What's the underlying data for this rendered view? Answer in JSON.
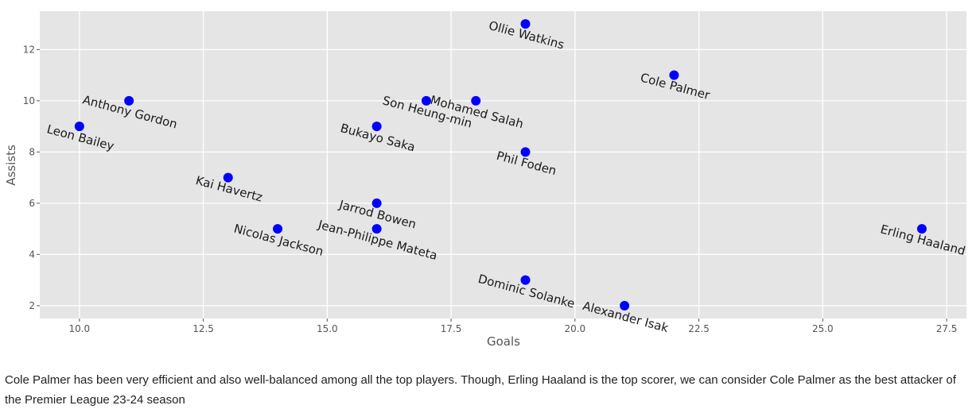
{
  "chart_data": {
    "type": "scatter",
    "xlabel": "Goals",
    "ylabel": "Assists",
    "xlim": [
      9.2,
      27.9
    ],
    "ylim": [
      1.5,
      13.5
    ],
    "xticks": [
      10.0,
      12.5,
      15.0,
      17.5,
      20.0,
      22.5,
      25.0,
      27.5
    ],
    "xtick_labels": [
      "10.0",
      "12.5",
      "15.0",
      "17.5",
      "20.0",
      "22.5",
      "25.0",
      "27.5"
    ],
    "yticks": [
      2,
      4,
      6,
      8,
      10,
      12
    ],
    "ytick_labels": [
      "2",
      "4",
      "6",
      "8",
      "10",
      "12"
    ],
    "grid": true,
    "marker_color": "#0000ff",
    "background_color": "#e5e5e5",
    "label_rotation_deg": 15,
    "points": [
      {
        "name": "Erling Haaland",
        "x": 27,
        "y": 5
      },
      {
        "name": "Cole Palmer",
        "x": 22,
        "y": 11
      },
      {
        "name": "Alexander Isak",
        "x": 21,
        "y": 2
      },
      {
        "name": "Ollie Watkins",
        "x": 19,
        "y": 13
      },
      {
        "name": "Phil Foden",
        "x": 19,
        "y": 8
      },
      {
        "name": "Dominic Solanke",
        "x": 19,
        "y": 3
      },
      {
        "name": "Mohamed Salah",
        "x": 18,
        "y": 10
      },
      {
        "name": "Son Heung-min",
        "x": 17,
        "y": 10
      },
      {
        "name": "Bukayo Saka",
        "x": 16,
        "y": 9
      },
      {
        "name": "Jarrod Bowen",
        "x": 16,
        "y": 6
      },
      {
        "name": "Jean-Philippe Mateta",
        "x": 16,
        "y": 5
      },
      {
        "name": "Nicolas Jackson",
        "x": 14,
        "y": 5
      },
      {
        "name": "Kai Havertz",
        "x": 13,
        "y": 7
      },
      {
        "name": "Anthony Gordon",
        "x": 11,
        "y": 10
      },
      {
        "name": "Leon Bailey",
        "x": 10,
        "y": 9
      }
    ]
  },
  "caption": "Cole Palmer has been very efficient and also well-balanced among all the top players. Though, Erling Haaland is the top scorer, we can consider Cole Palmer as the best attacker of the Premier League 23-24 season"
}
